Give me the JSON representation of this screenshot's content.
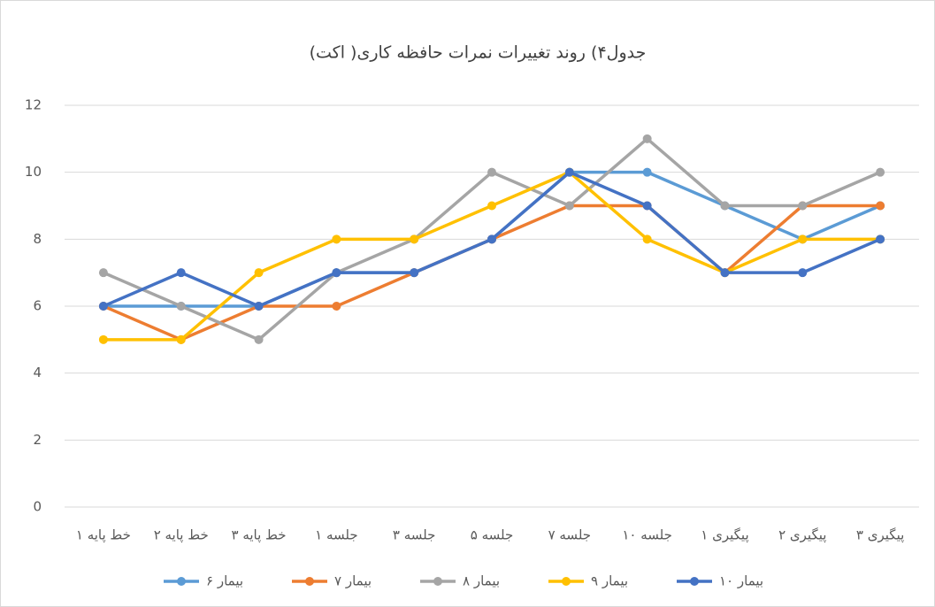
{
  "chart_data": {
    "type": "line",
    "title": "جدول۴) روند تغییرات نمرات حافظه کاری( اکت)",
    "categories": [
      "خط پایه ۱",
      "خط پایه ۲",
      "خط پایه ۳",
      "جلسه ۱",
      "جلسه ۳",
      "جلسه ۵",
      "جلسه ۷",
      "جلسه ۱۰",
      "پیگیری ۱",
      "پیگیری ۲",
      "پیگیری ۳"
    ],
    "series": [
      {
        "name": "بیمار ۶",
        "color": "#5b9bd5",
        "values": [
          6,
          6,
          6,
          7,
          7,
          8,
          10,
          10,
          9,
          8,
          9
        ]
      },
      {
        "name": "بیمار ۷",
        "color": "#ed7d31",
        "values": [
          6,
          5,
          6,
          6,
          7,
          8,
          9,
          9,
          7,
          9,
          9
        ]
      },
      {
        "name": "بیمار ۸",
        "color": "#a5a5a5",
        "values": [
          7,
          6,
          5,
          7,
          8,
          10,
          9,
          11,
          9,
          9,
          10
        ]
      },
      {
        "name": "بیمار ۹",
        "color": "#ffc000",
        "values": [
          5,
          5,
          7,
          8,
          8,
          9,
          10,
          8,
          7,
          8,
          8
        ]
      },
      {
        "name": "بیمار ۱۰",
        "color": "#4472c4",
        "values": [
          6,
          7,
          6,
          7,
          7,
          8,
          10,
          9,
          7,
          7,
          8
        ]
      }
    ],
    "ylim": [
      0,
      12
    ],
    "yticks": [
      0,
      2,
      4,
      6,
      8,
      10,
      12
    ],
    "grid": true,
    "legend": "bottom"
  }
}
